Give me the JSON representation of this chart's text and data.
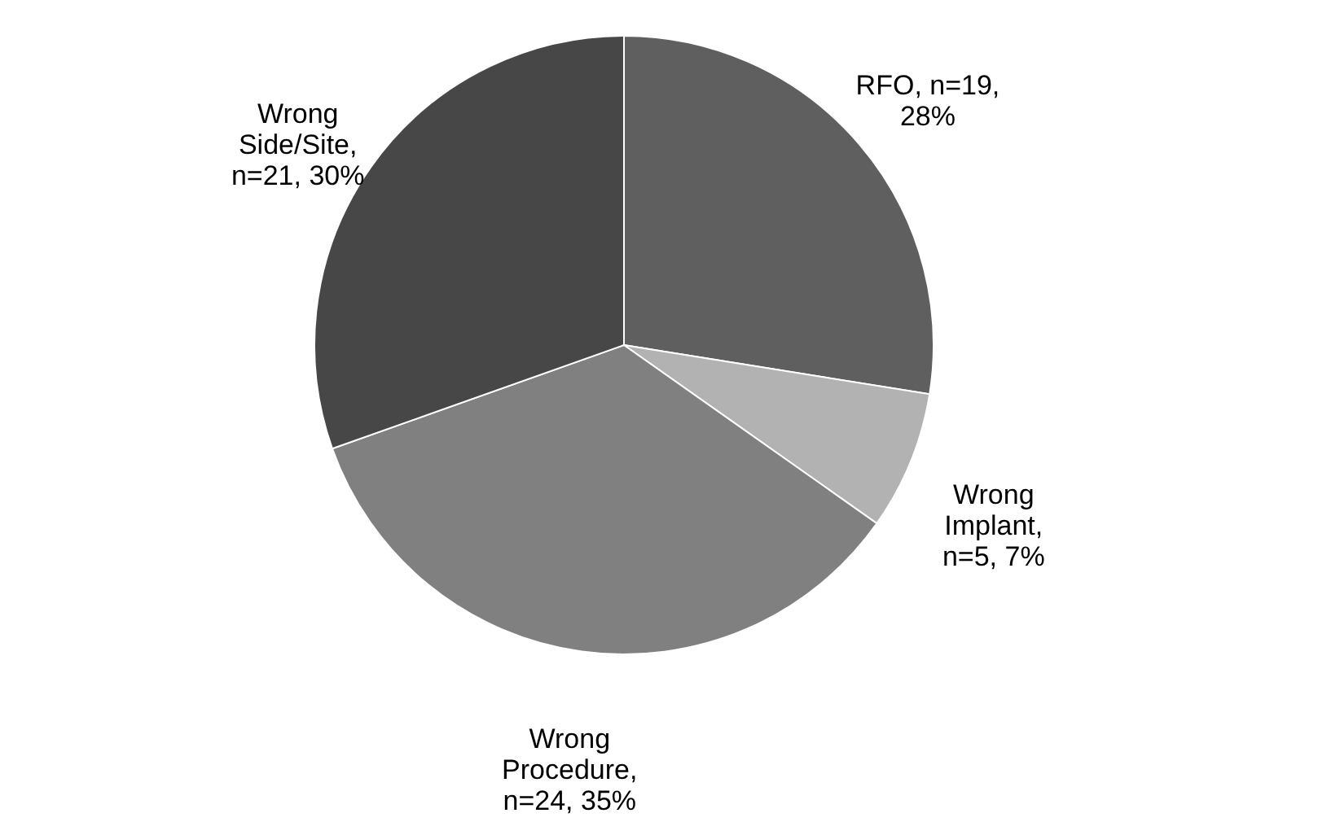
{
  "chart_data": {
    "type": "pie",
    "categories": [
      "RFO, n=19, 28%",
      "Wrong Implant, n=5, 7%",
      "Wrong Procedure, n=24, 35%",
      "Wrong Side/Site, n=21, 30%"
    ],
    "values": [
      19,
      5,
      24,
      21
    ],
    "colors": [
      "#5f5f5f",
      "#b2b2b2",
      "#808080",
      "#474747"
    ]
  }
}
